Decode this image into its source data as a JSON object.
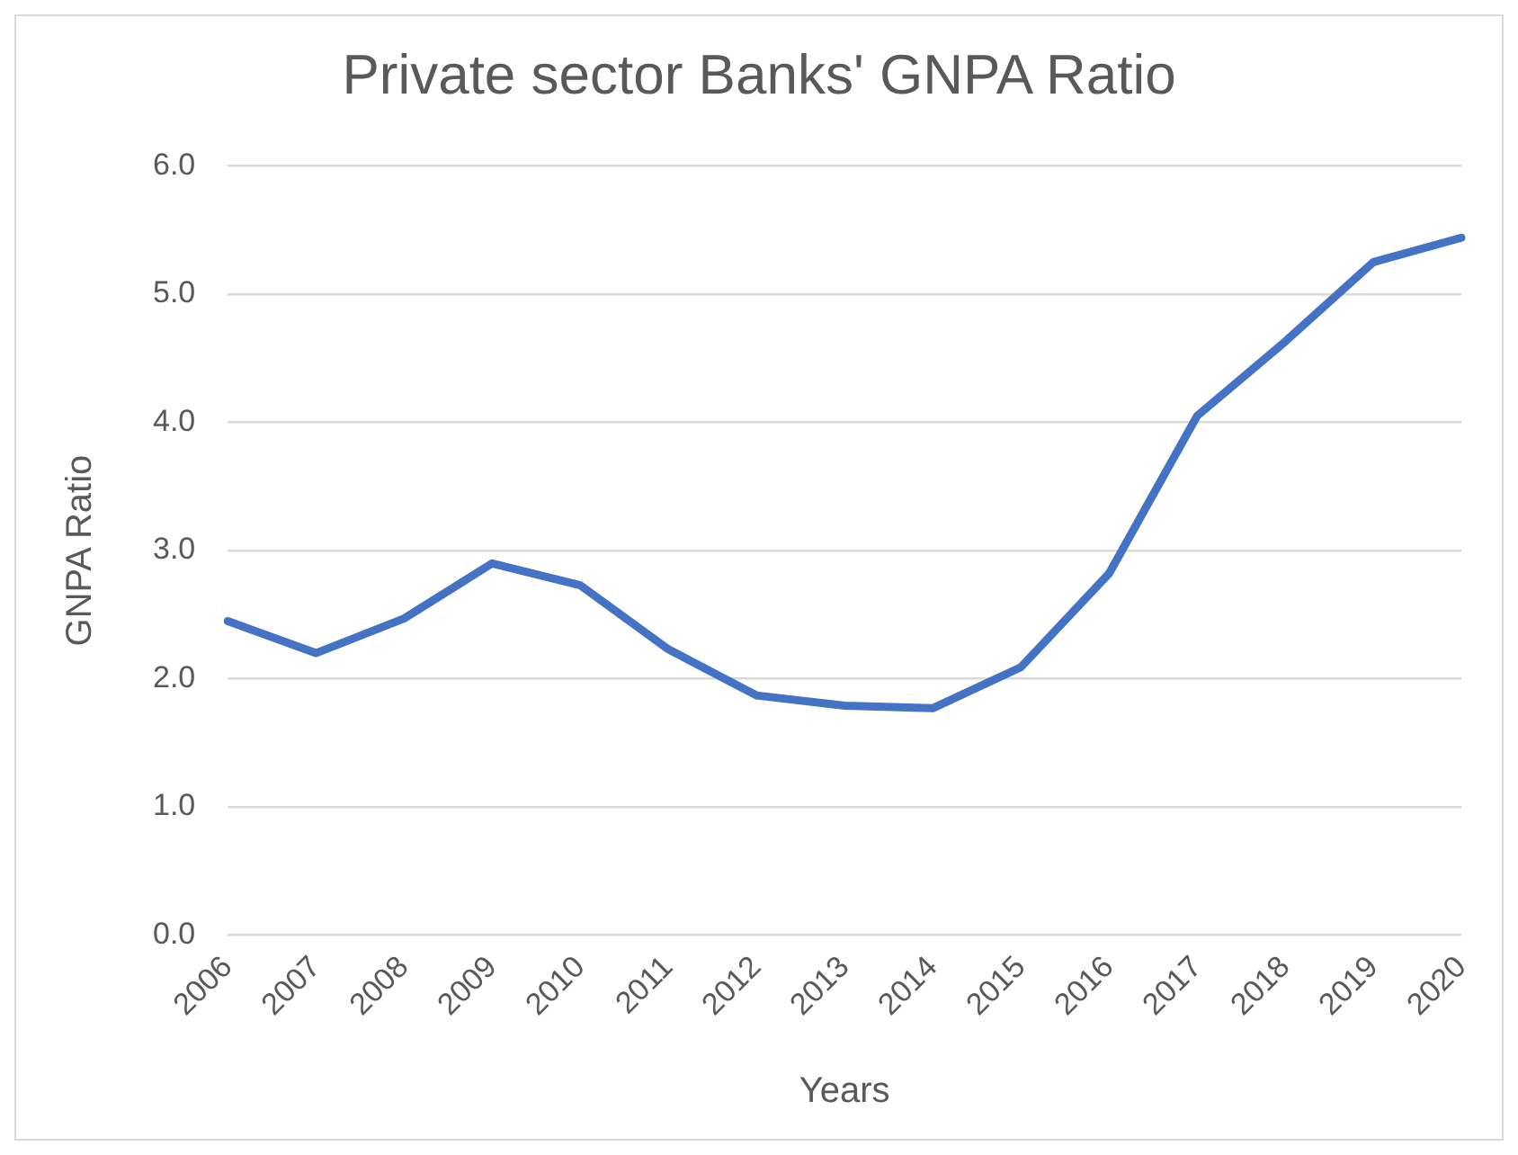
{
  "chart_data": {
    "type": "line",
    "title": "Private sector Banks' GNPA Ratio",
    "xlabel": "Years",
    "ylabel": "GNPA Ratio",
    "categories": [
      "2006",
      "2007",
      "2008",
      "2009",
      "2010",
      "2011",
      "2012",
      "2013",
      "2014",
      "2015",
      "2016",
      "2017",
      "2018",
      "2019",
      "2020"
    ],
    "series": [
      {
        "color": "#4472c4",
        "values": [
          2.45,
          2.2,
          2.47,
          2.9,
          2.73,
          2.23,
          1.87,
          1.79,
          1.77,
          2.09,
          2.82,
          4.05,
          4.63,
          5.25,
          5.44
        ]
      }
    ],
    "ylim": [
      0,
      6
    ],
    "yticks": [
      {
        "value": 0,
        "label": "0.0"
      },
      {
        "value": 1,
        "label": "1.0"
      },
      {
        "value": 2,
        "label": "2.0"
      },
      {
        "value": 3,
        "label": "3.0"
      },
      {
        "value": 4,
        "label": "4.0"
      },
      {
        "value": 5,
        "label": "5.0"
      },
      {
        "value": 6,
        "label": "6.0"
      }
    ],
    "grid": "y",
    "legend": false,
    "marker": "none",
    "line_style": "solid"
  }
}
